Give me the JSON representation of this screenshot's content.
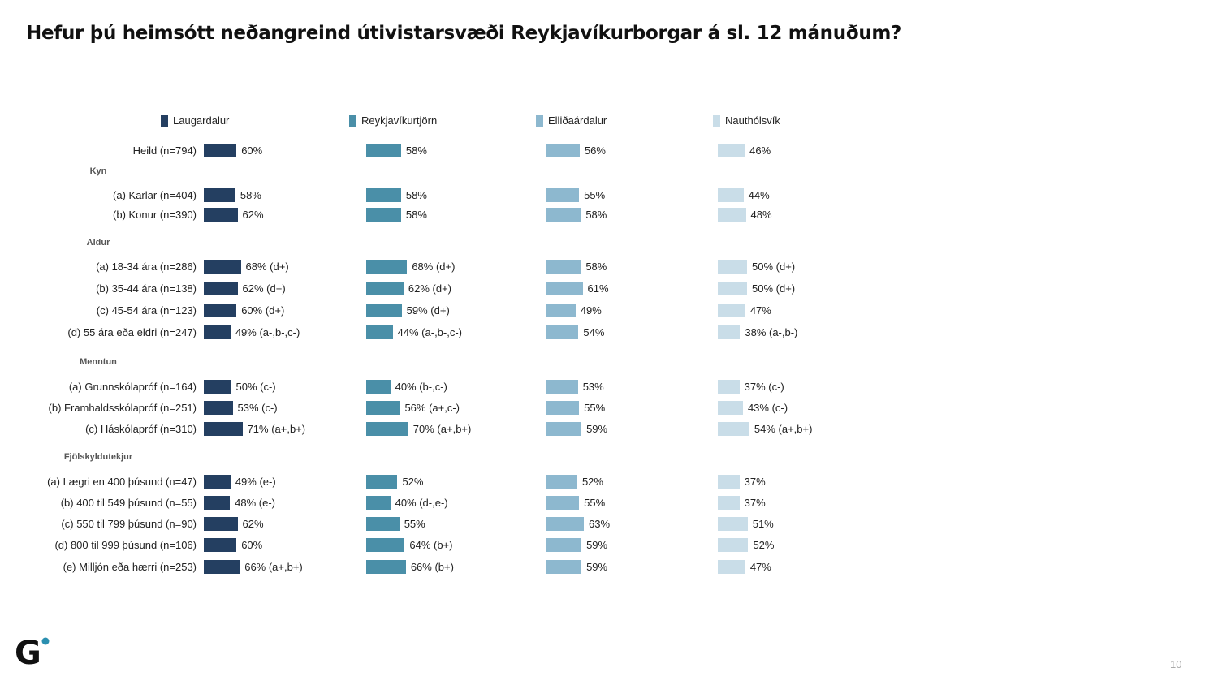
{
  "title": "Hefur þú heimsótt neðangreind útivistarsvæði Reykjavíkurborgar á sl. 12 mánuðum?",
  "page_number": "10",
  "logo_text": "G",
  "chart_data": {
    "type": "bar",
    "orientation": "horizontal",
    "legend_placement": "top",
    "grid": false,
    "series": [
      {
        "name": "Laugardalur",
        "color": "#243f61"
      },
      {
        "name": "Reykjavíkurtjörn",
        "color": "#4a8fa8"
      },
      {
        "name": "Elliðaárdalur",
        "color": "#8db8cf"
      },
      {
        "name": "Nauthólsvík",
        "color": "#c9dde8"
      }
    ],
    "rows": [
      {
        "label": "Heild (n=794)",
        "values": [
          60,
          58,
          56,
          46
        ],
        "labels": [
          "60%",
          "58%",
          "56%",
          "46%"
        ]
      },
      {
        "group": "Kyn"
      },
      {
        "label": "(a) Karlar (n=404)",
        "values": [
          58,
          58,
          55,
          44
        ],
        "labels": [
          "58%",
          "58%",
          "55%",
          "44%"
        ]
      },
      {
        "label": "(b) Konur (n=390)",
        "values": [
          62,
          58,
          58,
          48
        ],
        "labels": [
          "62%",
          "58%",
          "58%",
          "48%"
        ]
      },
      {
        "group": "Aldur"
      },
      {
        "label": "(a) 18-34 ára (n=286)",
        "values": [
          68,
          68,
          58,
          50
        ],
        "labels": [
          "68% (d+)",
          "68% (d+)",
          "58%",
          "50% (d+)"
        ]
      },
      {
        "label": "(b) 35-44 ára (n=138)",
        "values": [
          62,
          62,
          61,
          50
        ],
        "labels": [
          "62% (d+)",
          "62% (d+)",
          "61%",
          "50% (d+)"
        ]
      },
      {
        "label": "(c) 45-54 ára (n=123)",
        "values": [
          60,
          59,
          49,
          47
        ],
        "labels": [
          "60% (d+)",
          "59% (d+)",
          "49%",
          "47%"
        ]
      },
      {
        "label": "(d) 55 ára eða eldri (n=247)",
        "values": [
          49,
          44,
          54,
          38
        ],
        "labels": [
          "49% (a-,b-,c-)",
          "44% (a-,b-,c-)",
          "54%",
          "38% (a-,b-)"
        ]
      },
      {
        "group": "Menntun"
      },
      {
        "label": "(a) Grunnskólapróf (n=164)",
        "values": [
          50,
          40,
          53,
          37
        ],
        "labels": [
          "50% (c-)",
          "40% (b-,c-)",
          "53%",
          "37% (c-)"
        ]
      },
      {
        "label": "(b) Framhaldsskólapróf (n=251)",
        "values": [
          53,
          56,
          55,
          43
        ],
        "labels": [
          "53% (c-)",
          "56% (a+,c-)",
          "55%",
          "43% (c-)"
        ]
      },
      {
        "label": "(c) Háskólapróf (n=310)",
        "values": [
          71,
          70,
          59,
          54
        ],
        "labels": [
          "71% (a+,b+)",
          "70% (a+,b+)",
          "59%",
          "54% (a+,b+)"
        ]
      },
      {
        "group": "Fjölskyldutekjur"
      },
      {
        "label": "(a) Lægri en 400 þúsund (n=47)",
        "values": [
          49,
          52,
          52,
          37
        ],
        "labels": [
          "49% (e-)",
          "52%",
          "52%",
          "37%"
        ]
      },
      {
        "label": "(b) 400 til 549 þúsund (n=55)",
        "values": [
          48,
          40,
          55,
          37
        ],
        "labels": [
          "48% (e-)",
          "40% (d-,e-)",
          "55%",
          "37%"
        ]
      },
      {
        "label": "(c) 550 til 799 þúsund (n=90)",
        "values": [
          62,
          55,
          63,
          51
        ],
        "labels": [
          "62%",
          "55%",
          "63%",
          "51%"
        ]
      },
      {
        "label": "(d) 800 til 999 þúsund (n=106)",
        "values": [
          60,
          64,
          59,
          52
        ],
        "labels": [
          "60%",
          "64% (b+)",
          "59%",
          "52%"
        ]
      },
      {
        "label": "(e) Milljón eða hærri (n=253)",
        "values": [
          66,
          66,
          59,
          47
        ],
        "labels": [
          "66% (a+,b+)",
          "66% (b+)",
          "59%",
          "47%"
        ]
      }
    ]
  }
}
